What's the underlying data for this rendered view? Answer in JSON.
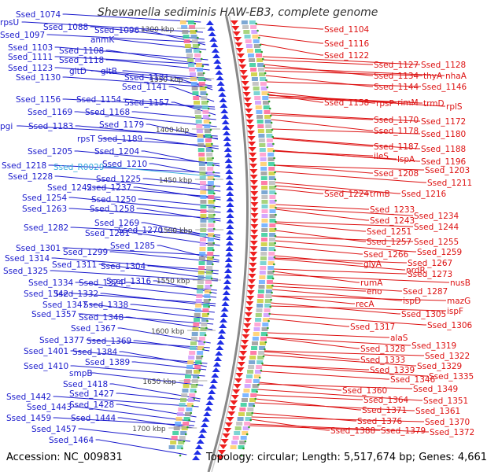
{
  "title": "Shewanella sediminis HAW-EB3, complete genome",
  "footer": {
    "accession": "Accession: NC_009831",
    "summary": "Topology: circular; Length: 5,517,674 bp; Genes: 4,661"
  },
  "colors": {
    "left_label": "#1a1acc",
    "left_rna": "#33aadd",
    "right_label": "#dd1111",
    "left_arrows": "#1f2ee6",
    "right_arrows": "#ee1f1f",
    "backbone": "#888888",
    "tick_dot": "#2e9e2e"
  },
  "scale_labels": [
    "1300 kbp",
    "1350 kbp",
    "1400 kbp",
    "1450 kbp",
    "1500 kbp",
    "1550 kbp",
    "1600 kbp",
    "1650 kbp",
    "1700 kbp"
  ],
  "left_labels": [
    "Ssed_1074",
    "rpsU",
    "Ssed_1088",
    "Ssed_1096",
    "Ssed_1097",
    "anmK",
    "Ssed_1103",
    "Ssed_1108",
    "Ssed_1111",
    "Ssed_1118",
    "Ssed_1123",
    "gltD",
    "gltB",
    "Ssed_1130",
    "Ssed_1131",
    "Ssed_1141",
    "Ssed_1156",
    "Ssed_1154",
    "Ssed_1157",
    "Ssed_1169",
    "Ssed_1168",
    "pgi",
    "Ssed_1183",
    "Ssed_1179",
    "rpsT",
    "Ssed_1189",
    "Ssed_1205",
    "Ssed_1204",
    "Ssed_1218",
    "Ssed_R0029",
    "Ssed_1210",
    "Ssed_1228",
    "Ssed_1225",
    "Ssed_1242",
    "Ssed_1237",
    "Ssed_1254",
    "Ssed_1250",
    "Ssed_1263",
    "Ssed_1258",
    "Ssed_1269",
    "Ssed_1282",
    "Ssed_1270",
    "Ssed_1281",
    "Ssed_1285",
    "Ssed_1301",
    "Ssed_1299",
    "Ssed_1314",
    "Ssed_1311",
    "Ssed_1304",
    "Ssed_1325",
    "Ssed_1316",
    "Ssed_1334",
    "Ssed_1324",
    "Ssed_1342",
    "Ssed_1332",
    "Ssed_1347",
    "Ssed_1338",
    "Ssed_1357",
    "Ssed_1348",
    "Ssed_1367",
    "Ssed_1377",
    "Ssed_1369",
    "Ssed_1401",
    "Ssed_1384",
    "Ssed_1389",
    "Ssed_1410",
    "smpB",
    "Ssed_1418",
    "Ssed_1427",
    "Ssed_1442",
    "Ssed_1428",
    "Ssed_1443",
    "Ssed_1459",
    "Ssed_1444",
    "Ssed_1457",
    "Ssed_1464"
  ],
  "right_labels": [
    "Ssed_1104",
    "Ssed_1116",
    "Ssed_1122",
    "Ssed_1127",
    "Ssed_1128",
    "Ssed_1134",
    "thyA",
    "nhaA",
    "Ssed_1144",
    "Ssed_1146",
    "Ssed_1158",
    "rpsP",
    "rimM",
    "trmD",
    "rplS",
    "Ssed_1170",
    "Ssed_1172",
    "Ssed_1178",
    "Ssed_1180",
    "Ssed_1187",
    "Ssed_1188",
    "ileS",
    "lspA",
    "Ssed_1196",
    "Ssed_1203",
    "Ssed_1208",
    "Ssed_1211",
    "Ssed_1224",
    "trmB",
    "Ssed_1216",
    "Ssed_1233",
    "Ssed_1234",
    "Ssed_1243",
    "Ssed_1244",
    "Ssed_1251",
    "Ssed_1257",
    "Ssed_1255",
    "Ssed_1266",
    "Ssed_1259",
    "Ssed_1267",
    "glyA",
    "nrdR",
    "Ssed_1273",
    "nusB",
    "rumA",
    "eno",
    "Ssed_1287",
    "ispD",
    "mazG",
    "recA",
    "Ssed_1305",
    "ispF",
    "Ssed_1317",
    "Ssed_1306",
    "alaS",
    "Ssed_1319",
    "Ssed_1328",
    "Ssed_1322",
    "Ssed_1333",
    "Ssed_1329",
    "Ssed_1339",
    "Ssed_1346",
    "Ssed_1335",
    "Ssed_1349",
    "Ssed_1360",
    "Ssed_1351",
    "Ssed_1364",
    "Ssed_1361",
    "Ssed_1371",
    "Ssed_1370",
    "Ssed_1376",
    "Ssed_1388",
    "Ssed_1379",
    "Ssed_1372"
  ]
}
